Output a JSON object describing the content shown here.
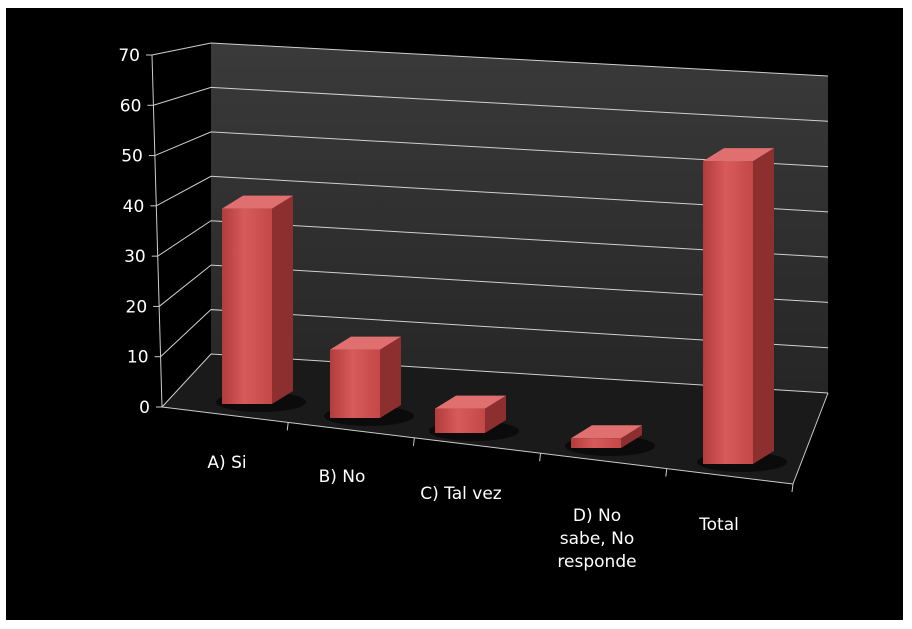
{
  "chart_data": {
    "type": "bar",
    "categories": [
      "A) Si",
      "B) No",
      "C) Tal vez",
      "D) No sabe, No responde",
      "Total"
    ],
    "category_label_lines": [
      [
        "A) Si"
      ],
      [
        "B) No"
      ],
      [
        "C) Tal vez"
      ],
      [
        "D) No",
        "sabe, No",
        "responde"
      ],
      [
        "Total"
      ]
    ],
    "values": [
      40,
      14,
      5,
      2,
      62
    ],
    "ylim": [
      0,
      70
    ],
    "yticks": [
      "0",
      "10",
      "20",
      "30",
      "40",
      "50",
      "60",
      "70"
    ],
    "grid": true,
    "legend": "none",
    "bar_color": "#c64a4a",
    "background": "#000000"
  }
}
